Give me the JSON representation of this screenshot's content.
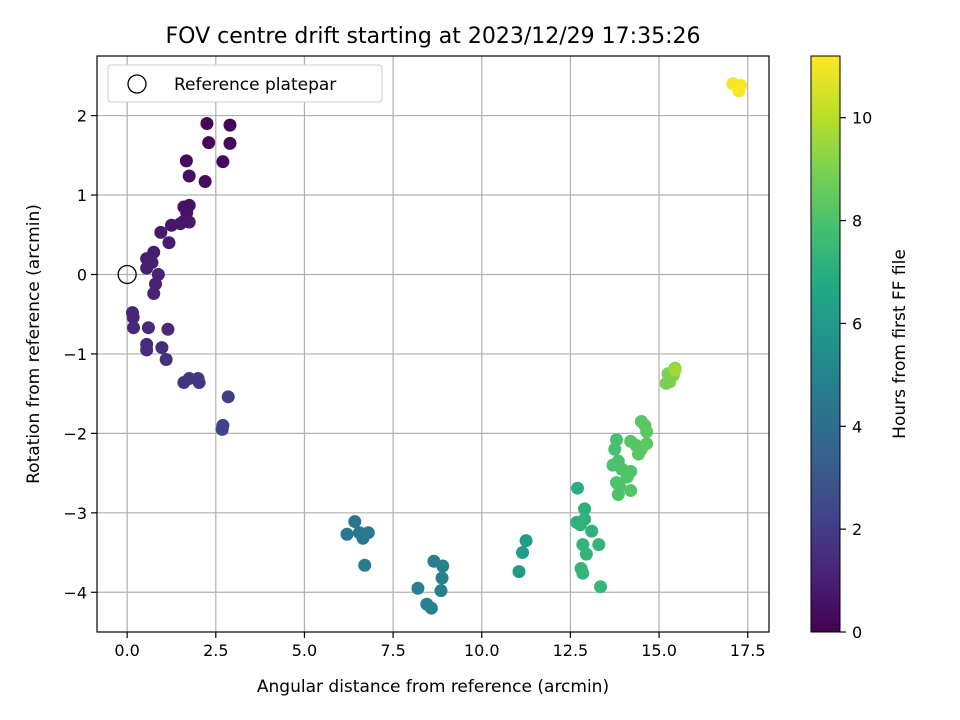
{
  "chart_data": {
    "type": "scatter",
    "title": "FOV centre drift starting at 2023/12/29 17:35:26",
    "xlabel": "Angular distance from reference (arcmin)",
    "ylabel": "Rotation from reference (arcmin)",
    "xlim": [
      -0.85,
      18.1
    ],
    "ylim": [
      -4.5,
      2.75
    ],
    "xticks": [
      0.0,
      2.5,
      5.0,
      7.5,
      10.0,
      12.5,
      15.0,
      17.5
    ],
    "xtick_labels": [
      "0.0",
      "2.5",
      "5.0",
      "7.5",
      "10.0",
      "12.5",
      "15.0",
      "17.5"
    ],
    "yticks": [
      -4,
      -3,
      -2,
      -1,
      0,
      1,
      2
    ],
    "ytick_labels": [
      "−4",
      "−3",
      "−2",
      "−1",
      "0",
      "1",
      "2"
    ],
    "grid": true,
    "legend": {
      "location": "upper-left",
      "entries": [
        "Reference platepar"
      ]
    },
    "reference_point": {
      "x": 0.0,
      "y": 0.0
    },
    "colorbar": {
      "label": "Hours from first FF file",
      "colormap": "viridis",
      "range": [
        0,
        11.2
      ],
      "ticks": [
        0,
        2,
        4,
        6,
        8,
        10
      ],
      "tick_labels": [
        "0",
        "2",
        "4",
        "6",
        "8",
        "10"
      ]
    },
    "points": [
      {
        "x": 2.25,
        "y": 1.9,
        "t": 0.1
      },
      {
        "x": 2.9,
        "y": 1.88,
        "t": 0.1
      },
      {
        "x": 2.3,
        "y": 1.66,
        "t": 0.2
      },
      {
        "x": 2.9,
        "y": 1.65,
        "t": 0.2
      },
      {
        "x": 1.67,
        "y": 1.43,
        "t": 0.3
      },
      {
        "x": 2.7,
        "y": 1.42,
        "t": 0.3
      },
      {
        "x": 1.75,
        "y": 1.24,
        "t": 0.4
      },
      {
        "x": 2.2,
        "y": 1.17,
        "t": 0.4
      },
      {
        "x": 1.6,
        "y": 0.85,
        "t": 0.5
      },
      {
        "x": 1.75,
        "y": 0.87,
        "t": 0.5
      },
      {
        "x": 1.68,
        "y": 0.78,
        "t": 0.6
      },
      {
        "x": 1.6,
        "y": 0.67,
        "t": 0.6
      },
      {
        "x": 1.75,
        "y": 0.66,
        "t": 0.7
      },
      {
        "x": 1.5,
        "y": 0.64,
        "t": 0.7
      },
      {
        "x": 1.25,
        "y": 0.62,
        "t": 0.75
      },
      {
        "x": 0.95,
        "y": 0.53,
        "t": 0.8
      },
      {
        "x": 1.18,
        "y": 0.4,
        "t": 0.85
      },
      {
        "x": 0.75,
        "y": 0.28,
        "t": 0.9
      },
      {
        "x": 0.55,
        "y": 0.2,
        "t": 0.95
      },
      {
        "x": 0.7,
        "y": 0.15,
        "t": 1.0
      },
      {
        "x": 0.55,
        "y": 0.08,
        "t": 1.0
      },
      {
        "x": 0.88,
        "y": 0.0,
        "t": 1.05
      },
      {
        "x": 0.8,
        "y": -0.12,
        "t": 1.1
      },
      {
        "x": 0.75,
        "y": -0.24,
        "t": 1.1
      },
      {
        "x": 0.15,
        "y": -0.48,
        "t": 1.2
      },
      {
        "x": 0.17,
        "y": -0.54,
        "t": 1.2
      },
      {
        "x": 0.18,
        "y": -0.67,
        "t": 1.3
      },
      {
        "x": 0.6,
        "y": -0.67,
        "t": 1.3
      },
      {
        "x": 1.15,
        "y": -0.69,
        "t": 1.35
      },
      {
        "x": 0.55,
        "y": -0.88,
        "t": 1.4
      },
      {
        "x": 0.55,
        "y": -0.95,
        "t": 1.4
      },
      {
        "x": 0.98,
        "y": -0.92,
        "t": 1.45
      },
      {
        "x": 1.1,
        "y": -1.07,
        "t": 1.5
      },
      {
        "x": 1.6,
        "y": -1.36,
        "t": 1.7
      },
      {
        "x": 1.75,
        "y": -1.31,
        "t": 1.7
      },
      {
        "x": 2.0,
        "y": -1.31,
        "t": 1.8
      },
      {
        "x": 2.03,
        "y": -1.36,
        "t": 1.8
      },
      {
        "x": 2.85,
        "y": -1.54,
        "t": 2.1
      },
      {
        "x": 2.7,
        "y": -1.9,
        "t": 2.2
      },
      {
        "x": 2.68,
        "y": -1.95,
        "t": 2.2
      },
      {
        "x": 6.42,
        "y": -3.11,
        "t": 4.4
      },
      {
        "x": 6.2,
        "y": -3.27,
        "t": 4.4
      },
      {
        "x": 6.55,
        "y": -3.25,
        "t": 4.5
      },
      {
        "x": 6.65,
        "y": -3.32,
        "t": 4.5
      },
      {
        "x": 6.8,
        "y": -3.25,
        "t": 4.55
      },
      {
        "x": 6.7,
        "y": -3.66,
        "t": 4.6
      },
      {
        "x": 8.65,
        "y": -3.61,
        "t": 4.8
      },
      {
        "x": 8.9,
        "y": -3.67,
        "t": 4.8
      },
      {
        "x": 8.88,
        "y": -3.82,
        "t": 4.85
      },
      {
        "x": 8.85,
        "y": -3.98,
        "t": 4.9
      },
      {
        "x": 8.2,
        "y": -3.95,
        "t": 4.9
      },
      {
        "x": 8.45,
        "y": -4.15,
        "t": 4.95
      },
      {
        "x": 8.58,
        "y": -4.2,
        "t": 4.95
      },
      {
        "x": 11.25,
        "y": -3.35,
        "t": 6.2
      },
      {
        "x": 11.15,
        "y": -3.5,
        "t": 6.2
      },
      {
        "x": 11.05,
        "y": -3.74,
        "t": 6.1
      },
      {
        "x": 12.7,
        "y": -2.69,
        "t": 7.0
      },
      {
        "x": 12.9,
        "y": -2.95,
        "t": 7.1
      },
      {
        "x": 12.68,
        "y": -3.12,
        "t": 7.1
      },
      {
        "x": 12.78,
        "y": -3.15,
        "t": 7.15
      },
      {
        "x": 12.9,
        "y": -3.08,
        "t": 7.2
      },
      {
        "x": 13.1,
        "y": -3.23,
        "t": 7.2
      },
      {
        "x": 12.85,
        "y": -3.4,
        "t": 7.25
      },
      {
        "x": 13.3,
        "y": -3.4,
        "t": 7.3
      },
      {
        "x": 12.95,
        "y": -3.52,
        "t": 7.3
      },
      {
        "x": 12.8,
        "y": -3.7,
        "t": 7.35
      },
      {
        "x": 12.85,
        "y": -3.76,
        "t": 7.35
      },
      {
        "x": 13.35,
        "y": -3.93,
        "t": 7.4
      },
      {
        "x": 13.8,
        "y": -2.08,
        "t": 7.9
      },
      {
        "x": 13.75,
        "y": -2.2,
        "t": 7.9
      },
      {
        "x": 13.7,
        "y": -2.4,
        "t": 7.95
      },
      {
        "x": 13.85,
        "y": -2.35,
        "t": 7.95
      },
      {
        "x": 13.95,
        "y": -2.45,
        "t": 8.0
      },
      {
        "x": 13.8,
        "y": -2.62,
        "t": 8.0
      },
      {
        "x": 13.88,
        "y": -2.66,
        "t": 8.05
      },
      {
        "x": 13.85,
        "y": -2.77,
        "t": 8.05
      },
      {
        "x": 14.1,
        "y": -2.55,
        "t": 8.1
      },
      {
        "x": 14.2,
        "y": -2.48,
        "t": 8.1
      },
      {
        "x": 14.2,
        "y": -2.72,
        "t": 8.15
      },
      {
        "x": 14.2,
        "y": -2.1,
        "t": 8.2
      },
      {
        "x": 14.35,
        "y": -2.15,
        "t": 8.2
      },
      {
        "x": 14.42,
        "y": -2.26,
        "t": 8.25
      },
      {
        "x": 14.5,
        "y": -2.2,
        "t": 8.25
      },
      {
        "x": 14.5,
        "y": -1.85,
        "t": 8.3
      },
      {
        "x": 14.6,
        "y": -1.9,
        "t": 8.3
      },
      {
        "x": 14.65,
        "y": -1.98,
        "t": 8.35
      },
      {
        "x": 14.65,
        "y": -2.13,
        "t": 8.35
      },
      {
        "x": 15.2,
        "y": -1.37,
        "t": 8.9
      },
      {
        "x": 15.3,
        "y": -1.35,
        "t": 8.9
      },
      {
        "x": 15.25,
        "y": -1.25,
        "t": 9.0
      },
      {
        "x": 15.45,
        "y": -1.18,
        "t": 9.0
      },
      {
        "x": 15.4,
        "y": -1.27,
        "t": 9.0
      },
      {
        "x": 15.45,
        "y": -1.2,
        "t": 9.6
      },
      {
        "x": 17.08,
        "y": 2.4,
        "t": 11.0
      },
      {
        "x": 17.3,
        "y": 2.38,
        "t": 11.1
      },
      {
        "x": 17.25,
        "y": 2.31,
        "t": 11.2
      }
    ]
  }
}
